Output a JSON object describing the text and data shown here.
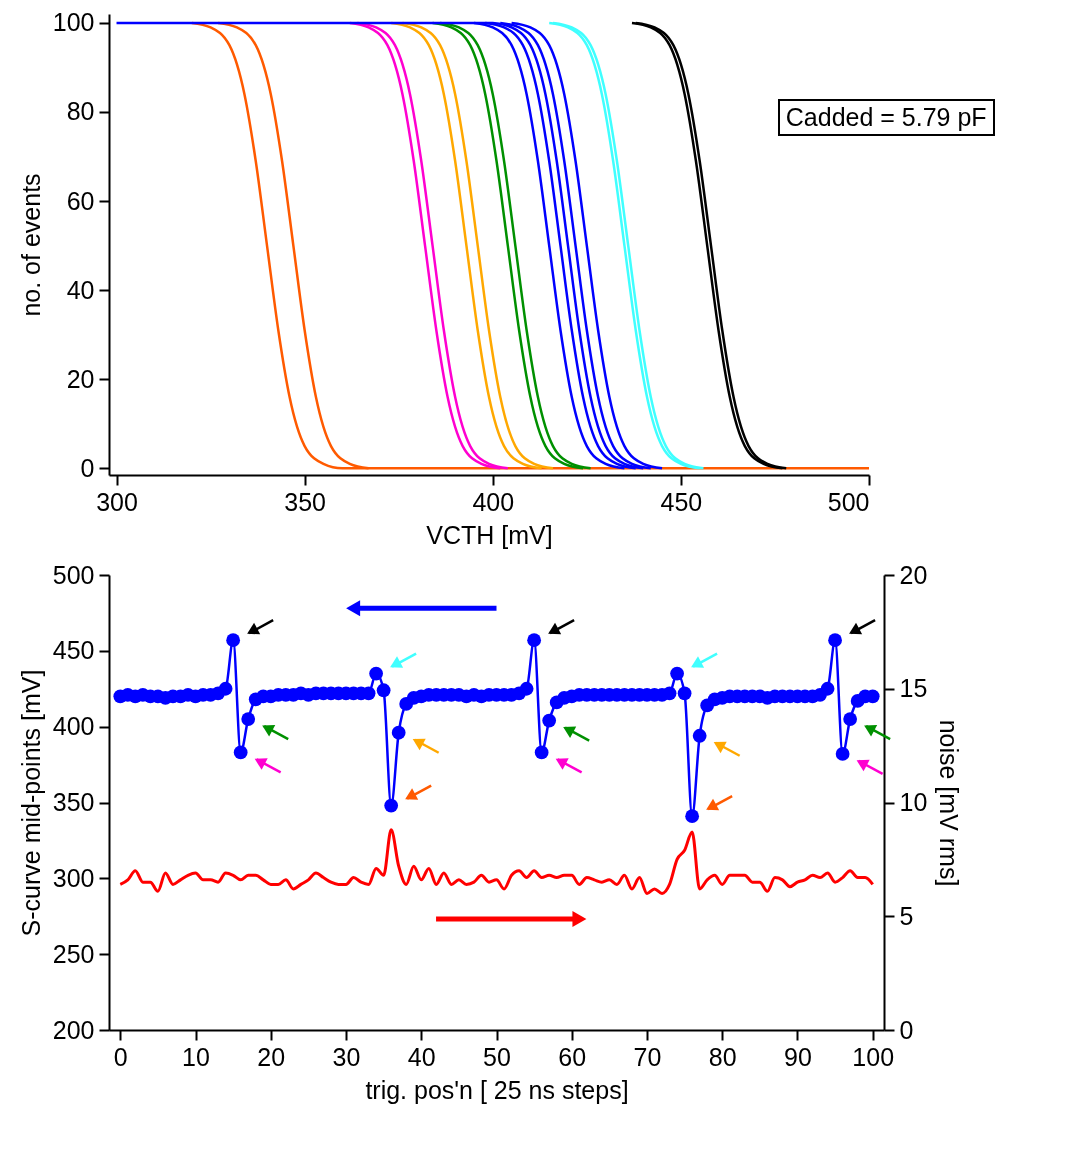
{
  "chart_data": [
    {
      "type": "line",
      "xlabel": "VCTH [mV]",
      "ylabel": "no. of events",
      "xlim": [
        298,
        500
      ],
      "ylim": [
        -1.5,
        102
      ],
      "xticks": [
        300,
        350,
        400,
        450,
        500
      ],
      "yticks": [
        0,
        20,
        40,
        60,
        80,
        100
      ],
      "annotations": [
        "Cadded = 5.79 pF"
      ],
      "series": [
        {
          "color": "#ff5a00",
          "x": [
            320,
            325,
            330,
            334,
            337,
            340,
            343,
            346,
            350,
            355,
            360,
            500
          ],
          "values": [
            100,
            99,
            95,
            84,
            69,
            50,
            31,
            16,
            5,
            1,
            0,
            0
          ]
        },
        {
          "color": "#ff5a00",
          "x": [
            327,
            332,
            337,
            341,
            344,
            347,
            350,
            353,
            357,
            362,
            367
          ],
          "values": [
            100,
            99,
            95,
            84,
            69,
            50,
            31,
            16,
            5,
            1,
            0
          ]
        },
        {
          "color": "#ff00d0",
          "x": [
            362,
            367,
            372,
            376,
            379,
            382,
            385,
            388,
            392,
            397,
            402
          ],
          "values": [
            100,
            99,
            95,
            84,
            69,
            50,
            31,
            16,
            5,
            1,
            0
          ]
        },
        {
          "color": "#ff00d0",
          "x": [
            364,
            369,
            374,
            378,
            381,
            384,
            387,
            390,
            394,
            399,
            404
          ],
          "values": [
            100,
            99,
            95,
            84,
            69,
            50,
            31,
            16,
            5,
            1,
            0
          ]
        },
        {
          "color": "#ffa800",
          "x": [
            373,
            378,
            383,
            387,
            390,
            393,
            396,
            399,
            403,
            408,
            413
          ],
          "values": [
            100,
            99,
            95,
            84,
            69,
            50,
            31,
            16,
            5,
            1,
            0
          ]
        },
        {
          "color": "#ffa800",
          "x": [
            376,
            381,
            386,
            390,
            393,
            396,
            399,
            402,
            406,
            411,
            416
          ],
          "values": [
            100,
            99,
            95,
            84,
            69,
            50,
            31,
            16,
            5,
            1,
            0
          ]
        },
        {
          "color": "#009000",
          "x": [
            384,
            389,
            394,
            398,
            401,
            404,
            407,
            410,
            414,
            419,
            424
          ],
          "values": [
            100,
            99,
            95,
            84,
            69,
            50,
            31,
            16,
            5,
            1,
            0
          ]
        },
        {
          "color": "#009000",
          "x": [
            386,
            391,
            396,
            400,
            403,
            406,
            409,
            412,
            416,
            421,
            426
          ],
          "values": [
            100,
            99,
            95,
            84,
            69,
            50,
            31,
            16,
            5,
            1,
            0
          ]
        },
        {
          "color": "#0000ff",
          "x": [
            395,
            400,
            405,
            409,
            412,
            415,
            418,
            421,
            425,
            430,
            435
          ],
          "values": [
            100,
            99,
            95,
            84,
            69,
            50,
            31,
            16,
            5,
            1,
            0
          ]
        },
        {
          "color": "#0000ff",
          "x": [
            398,
            403,
            408,
            412,
            415,
            418,
            421,
            424,
            428,
            433,
            438
          ],
          "values": [
            100,
            99,
            95,
            84,
            69,
            50,
            31,
            16,
            5,
            1,
            0
          ]
        },
        {
          "color": "#0000ff",
          "x": [
            300,
            400,
            405,
            410,
            414,
            417,
            420,
            423,
            426,
            430,
            435,
            440
          ],
          "values": [
            100,
            100,
            99,
            95,
            84,
            69,
            50,
            31,
            16,
            5,
            1,
            0
          ]
        },
        {
          "color": "#0000ff",
          "x": [
            402,
            407,
            412,
            416,
            419,
            422,
            425,
            428,
            432,
            437,
            442
          ],
          "values": [
            100,
            99,
            95,
            84,
            69,
            50,
            31,
            16,
            5,
            1,
            0
          ]
        },
        {
          "color": "#0000ff",
          "x": [
            405,
            410,
            415,
            419,
            422,
            425,
            428,
            431,
            435,
            440,
            445
          ],
          "values": [
            100,
            99,
            95,
            84,
            69,
            50,
            31,
            16,
            5,
            1,
            0
          ]
        },
        {
          "color": "#40ffff",
          "x": [
            415,
            420,
            425,
            429,
            432,
            435,
            438,
            441,
            445,
            450,
            455
          ],
          "values": [
            100,
            99,
            95,
            84,
            69,
            50,
            31,
            16,
            5,
            1,
            0
          ]
        },
        {
          "color": "#40ffff",
          "x": [
            416,
            421,
            426,
            430,
            433,
            436,
            439,
            442,
            446,
            451,
            456
          ],
          "values": [
            100,
            99,
            95,
            84,
            69,
            50,
            31,
            16,
            5,
            1,
            0
          ]
        },
        {
          "color": "#000000",
          "x": [
            437,
            442,
            447,
            451,
            454,
            457,
            460,
            463,
            467,
            472,
            477
          ],
          "values": [
            100,
            99,
            95,
            84,
            69,
            50,
            31,
            16,
            5,
            1,
            0
          ]
        },
        {
          "color": "#000000",
          "x": [
            438,
            443,
            448,
            452,
            455,
            458,
            461,
            464,
            468,
            473,
            478
          ],
          "values": [
            100,
            99,
            95,
            84,
            69,
            50,
            31,
            16,
            5,
            1,
            0
          ]
        }
      ]
    },
    {
      "type": "line",
      "xlabel": "trig. pos'n [ 25 ns steps]",
      "ylabel": "S-curve mid-points [mV]",
      "y2label": "noise [mV rms]",
      "xlim": [
        -1.5,
        101.5
      ],
      "ylim": [
        200,
        500
      ],
      "y2lim": [
        0,
        20
      ],
      "xticks": [
        0,
        10,
        20,
        30,
        40,
        50,
        60,
        70,
        80,
        90,
        100
      ],
      "yticks": [
        200,
        250,
        300,
        350,
        400,
        450,
        500
      ],
      "y2ticks": [
        0,
        5,
        10,
        15,
        20
      ],
      "x": [
        0,
        1,
        2,
        3,
        4,
        5,
        6,
        7,
        8,
        9,
        10,
        11,
        12,
        13,
        14,
        15,
        16,
        17,
        18,
        19,
        20,
        21,
        22,
        23,
        24,
        25,
        26,
        27,
        28,
        29,
        30,
        31,
        32,
        33,
        34,
        35,
        36,
        37,
        38,
        39,
        40,
        41,
        42,
        43,
        44,
        45,
        46,
        47,
        48,
        49,
        50,
        51,
        52,
        53,
        54,
        55,
        56,
        57,
        58,
        59,
        60,
        61,
        62,
        63,
        64,
        65,
        66,
        67,
        68,
        69,
        70,
        71,
        72,
        73,
        74,
        75,
        76,
        77,
        78,
        79,
        80,
        81,
        82,
        83,
        84,
        85,
        86,
        87,
        88,
        89,
        90,
        91,
        92,
        93,
        94,
        95,
        96,
        97,
        98,
        99,
        100
      ],
      "series": [
        {
          "color": "#0000ff",
          "marker": "circle",
          "values": [
            420,
            421,
            420,
            421,
            420,
            420,
            419,
            420,
            420,
            421,
            420,
            421,
            421,
            422,
            425,
            457,
            383,
            405,
            418,
            420,
            420,
            421,
            421,
            421,
            422,
            421,
            422,
            422,
            422,
            422,
            422,
            422,
            422,
            422,
            435,
            424,
            348,
            396,
            415,
            419,
            420,
            421,
            421,
            421,
            421,
            421,
            420,
            421,
            420,
            421,
            421,
            421,
            421,
            422,
            425,
            457,
            383,
            404,
            416,
            419,
            420,
            421,
            421,
            421,
            421,
            421,
            421,
            421,
            421,
            421,
            421,
            421,
            421,
            422,
            435,
            422,
            341,
            394,
            414,
            418,
            419,
            420,
            420,
            420,
            420,
            420,
            419,
            420,
            420,
            420,
            420,
            420,
            420,
            421,
            425,
            457,
            382,
            405,
            417,
            420,
            420
          ]
        },
        {
          "color": "#ff0000",
          "axis": "y2",
          "marker": "none",
          "values": [
            6.4,
            6.6,
            7.0,
            6.5,
            6.5,
            6.1,
            6.9,
            6.4,
            6.6,
            6.8,
            6.9,
            6.6,
            6.6,
            6.5,
            6.9,
            6.8,
            6.6,
            6.8,
            6.8,
            6.6,
            6.4,
            6.4,
            6.6,
            6.2,
            6.4,
            6.6,
            6.9,
            6.7,
            6.5,
            6.4,
            6.4,
            6.7,
            6.5,
            6.4,
            7.1,
            6.8,
            8.8,
            7.2,
            6.4,
            7.2,
            6.6,
            7.1,
            6.4,
            6.9,
            6.4,
            6.6,
            6.4,
            6.5,
            6.8,
            6.5,
            6.6,
            6.2,
            6.8,
            7.0,
            6.7,
            7.0,
            6.7,
            6.8,
            6.7,
            6.8,
            6.8,
            6.4,
            6.7,
            6.6,
            6.5,
            6.6,
            6.4,
            6.8,
            6.2,
            6.7,
            6.0,
            6.2,
            6.0,
            6.4,
            7.5,
            7.9,
            8.7,
            6.2,
            6.6,
            6.8,
            6.4,
            6.8,
            6.8,
            6.8,
            6.5,
            6.5,
            6.1,
            6.7,
            6.6,
            6.3,
            6.5,
            6.6,
            6.8,
            6.7,
            6.9,
            6.5,
            6.7,
            7.0,
            6.7,
            6.7,
            6.4
          ]
        }
      ]
    }
  ]
}
